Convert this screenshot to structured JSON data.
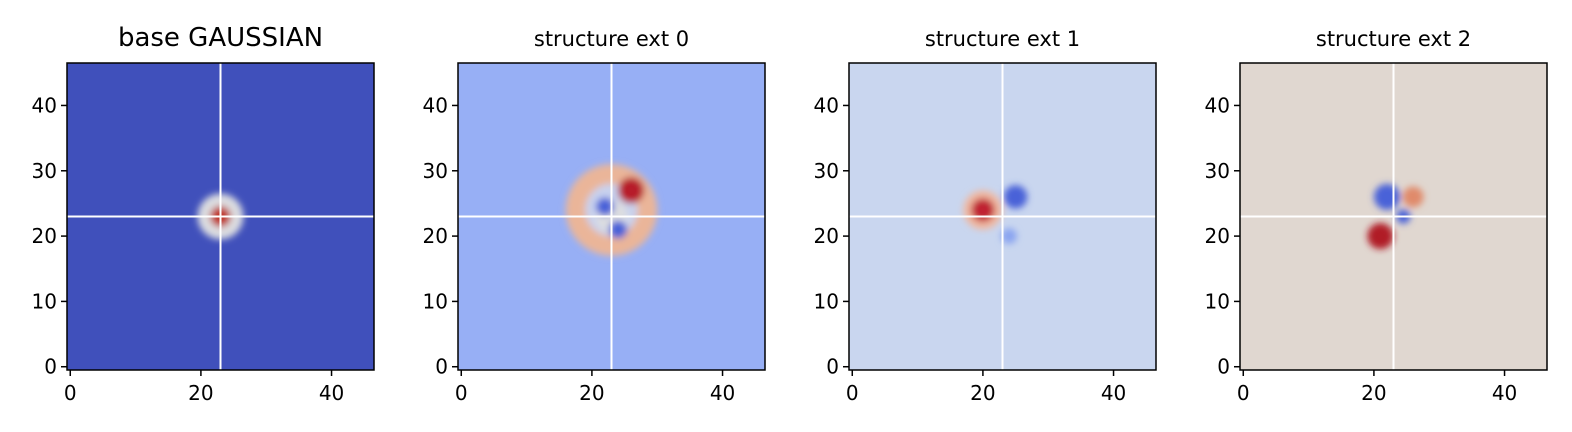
{
  "chart_data": [
    {
      "type": "heatmap",
      "title": "base GAUSSIAN",
      "background": "#4050bb",
      "xlim": [
        -0.5,
        46.5
      ],
      "ylim": [
        -0.5,
        46.5
      ],
      "xticks": [
        0,
        20,
        40
      ],
      "yticks": [
        0,
        10,
        20,
        30,
        40
      ],
      "crosshair": [
        23,
        23
      ],
      "blobs": [
        {
          "x": 23,
          "y": 23,
          "r": 3.5,
          "color": "#dcdde0"
        },
        {
          "x": 23,
          "y": 23,
          "r": 1.6,
          "color": "#c0392b"
        }
      ]
    },
    {
      "type": "heatmap",
      "title": "structure ext 0",
      "background": "#97aff5",
      "xlim": [
        -0.5,
        46.5
      ],
      "ylim": [
        -0.5,
        46.5
      ],
      "xticks": [
        0,
        20,
        40
      ],
      "yticks": [
        0,
        10,
        20,
        30,
        40
      ],
      "crosshair": [
        23,
        23
      ],
      "blobs": [
        {
          "x": 23,
          "y": 24,
          "r": 7,
          "color": "#c8d2ee"
        },
        {
          "x": 23,
          "y": 24,
          "r": 5.5,
          "color": "#eab599",
          "width": 3
        },
        {
          "x": 26,
          "y": 27,
          "r": 2,
          "color": "#b71c2c"
        },
        {
          "x": 23,
          "y": 23,
          "r": 2.5,
          "color": "#dcdde0"
        },
        {
          "x": 22,
          "y": 24.5,
          "r": 1.4,
          "color": "#4a62d8"
        },
        {
          "x": 24,
          "y": 21,
          "r": 1.4,
          "color": "#4a62d8"
        }
      ]
    },
    {
      "type": "heatmap",
      "title": "structure ext 1",
      "background": "#c9d6ef",
      "xlim": [
        -0.5,
        46.5
      ],
      "ylim": [
        -0.5,
        46.5
      ],
      "xticks": [
        0,
        20,
        40
      ],
      "yticks": [
        0,
        10,
        20,
        30,
        40
      ],
      "crosshair": [
        23,
        23
      ],
      "blobs": [
        {
          "x": 20,
          "y": 24,
          "r": 3,
          "color": "#f0b8a0"
        },
        {
          "x": 20,
          "y": 24,
          "r": 1.8,
          "color": "#c02030"
        },
        {
          "x": 25,
          "y": 26,
          "r": 1.8,
          "color": "#4a62d8"
        },
        {
          "x": 24,
          "y": 20,
          "r": 1.2,
          "color": "#8aa4f0"
        }
      ]
    },
    {
      "type": "heatmap",
      "title": "structure ext 2",
      "background": "#e0d7d0",
      "xlim": [
        -0.5,
        46.5
      ],
      "ylim": [
        -0.5,
        46.5
      ],
      "xticks": [
        0,
        20,
        40
      ],
      "yticks": [
        0,
        10,
        20,
        30,
        40
      ],
      "crosshair": [
        23,
        23
      ],
      "blobs": [
        {
          "x": 22,
          "y": 26,
          "r": 2,
          "color": "#4a62d8"
        },
        {
          "x": 26,
          "y": 26,
          "r": 1.6,
          "color": "#e08a6a"
        },
        {
          "x": 21,
          "y": 20,
          "r": 2,
          "color": "#b01a28"
        },
        {
          "x": 24.5,
          "y": 23,
          "r": 1.1,
          "color": "#4a62d8"
        }
      ]
    }
  ]
}
